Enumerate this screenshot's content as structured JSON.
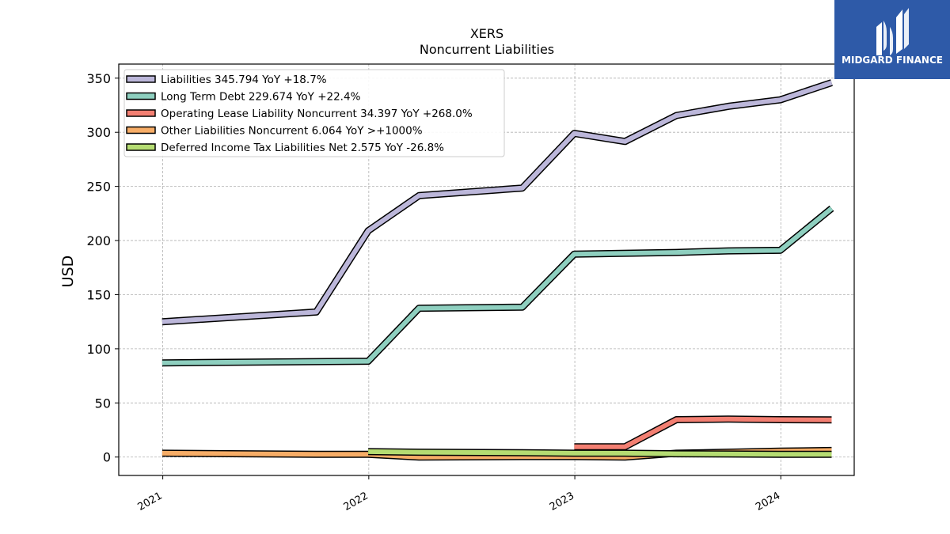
{
  "chart_data": {
    "type": "line",
    "title": "XERS",
    "subtitle": "Noncurrent  Liabilities",
    "ylabel": "USD",
    "xlabel": "",
    "ylim": [
      -17,
      363
    ],
    "xlim": [
      "2020-10-15",
      "2024-05-10"
    ],
    "yticks": [
      0,
      50,
      100,
      150,
      200,
      250,
      300,
      350
    ],
    "xticks": [
      "2021-01-01",
      "2022-01-01",
      "2023-01-01",
      "2024-01-01"
    ],
    "xtick_labels": [
      "2021",
      "2022",
      "2023",
      "2024"
    ],
    "grid": true,
    "legend_position": "top-left",
    "series": [
      {
        "name": "Liabilities",
        "legend_label": "Liabilities  345.794 YoY +18.7%",
        "color": "#bcb7da",
        "points": [
          [
            "2020-12-31",
            125
          ],
          [
            "2021-09-30",
            134
          ],
          [
            "2021-12-31",
            209
          ],
          [
            "2022-03-31",
            241.5
          ],
          [
            "2022-09-30",
            248.5
          ],
          [
            "2022-12-31",
            299
          ],
          [
            "2023-03-31",
            291.5
          ],
          [
            "2023-06-30",
            315.5
          ],
          [
            "2023-09-30",
            324
          ],
          [
            "2023-12-31",
            330
          ],
          [
            "2024-03-31",
            345.794
          ]
        ]
      },
      {
        "name": "Long Term Debt",
        "legend_label": "Long Term Debt  229.674 YoY +22.4%",
        "color": "#8ecfbf",
        "points": [
          [
            "2020-12-31",
            87
          ],
          [
            "2021-12-31",
            88.5
          ],
          [
            "2022-03-31",
            137.5
          ],
          [
            "2022-09-30",
            138.5
          ],
          [
            "2022-12-31",
            187.5
          ],
          [
            "2023-06-30",
            189
          ],
          [
            "2023-09-30",
            190.5
          ],
          [
            "2023-12-31",
            191
          ],
          [
            "2024-03-31",
            229.674
          ]
        ]
      },
      {
        "name": "Operating Lease Liability Noncurrent",
        "legend_label": "Operating Lease Liability Noncurrent  34.397 YoY +268.0%",
        "color": "#f37f72",
        "points": [
          [
            "2022-12-31",
            9.5
          ],
          [
            "2023-03-31",
            9.5
          ],
          [
            "2023-06-30",
            34.5
          ],
          [
            "2023-09-30",
            35
          ],
          [
            "2023-12-31",
            34.5
          ],
          [
            "2024-03-31",
            34.397
          ]
        ]
      },
      {
        "name": "Other Liabilities Noncurrent",
        "legend_label": "Other Liabilities Noncurrent  6.064 YoY >+1000%",
        "color": "#f7ad67",
        "points": [
          [
            "2020-12-31",
            3.5
          ],
          [
            "2021-09-30",
            2.5
          ],
          [
            "2021-12-31",
            2.5
          ],
          [
            "2022-03-31",
            0
          ],
          [
            "2022-09-30",
            0.5
          ],
          [
            "2022-12-31",
            0.5
          ],
          [
            "2023-03-31",
            0
          ],
          [
            "2023-06-30",
            3.5
          ],
          [
            "2023-09-30",
            4.5
          ],
          [
            "2023-12-31",
            5.5
          ],
          [
            "2024-03-31",
            6.064
          ]
        ]
      },
      {
        "name": "Deferred Income Tax Liabilities Net",
        "legend_label": "Deferred Income Tax Liabilities Net  2.575 YoY -26.8%",
        "color": "#b5dc72",
        "points": [
          [
            "2021-12-31",
            5
          ],
          [
            "2022-03-31",
            4.5
          ],
          [
            "2022-09-30",
            4
          ],
          [
            "2022-12-31",
            3.5
          ],
          [
            "2023-03-31",
            3.5
          ],
          [
            "2023-06-30",
            3
          ],
          [
            "2023-09-30",
            2.8
          ],
          [
            "2023-12-31",
            2.6
          ],
          [
            "2024-03-31",
            2.575
          ]
        ]
      }
    ]
  },
  "logo": {
    "text": "MIDGARD FINANCE",
    "background": "#2e5aa8",
    "text_color": "#ffffff"
  }
}
